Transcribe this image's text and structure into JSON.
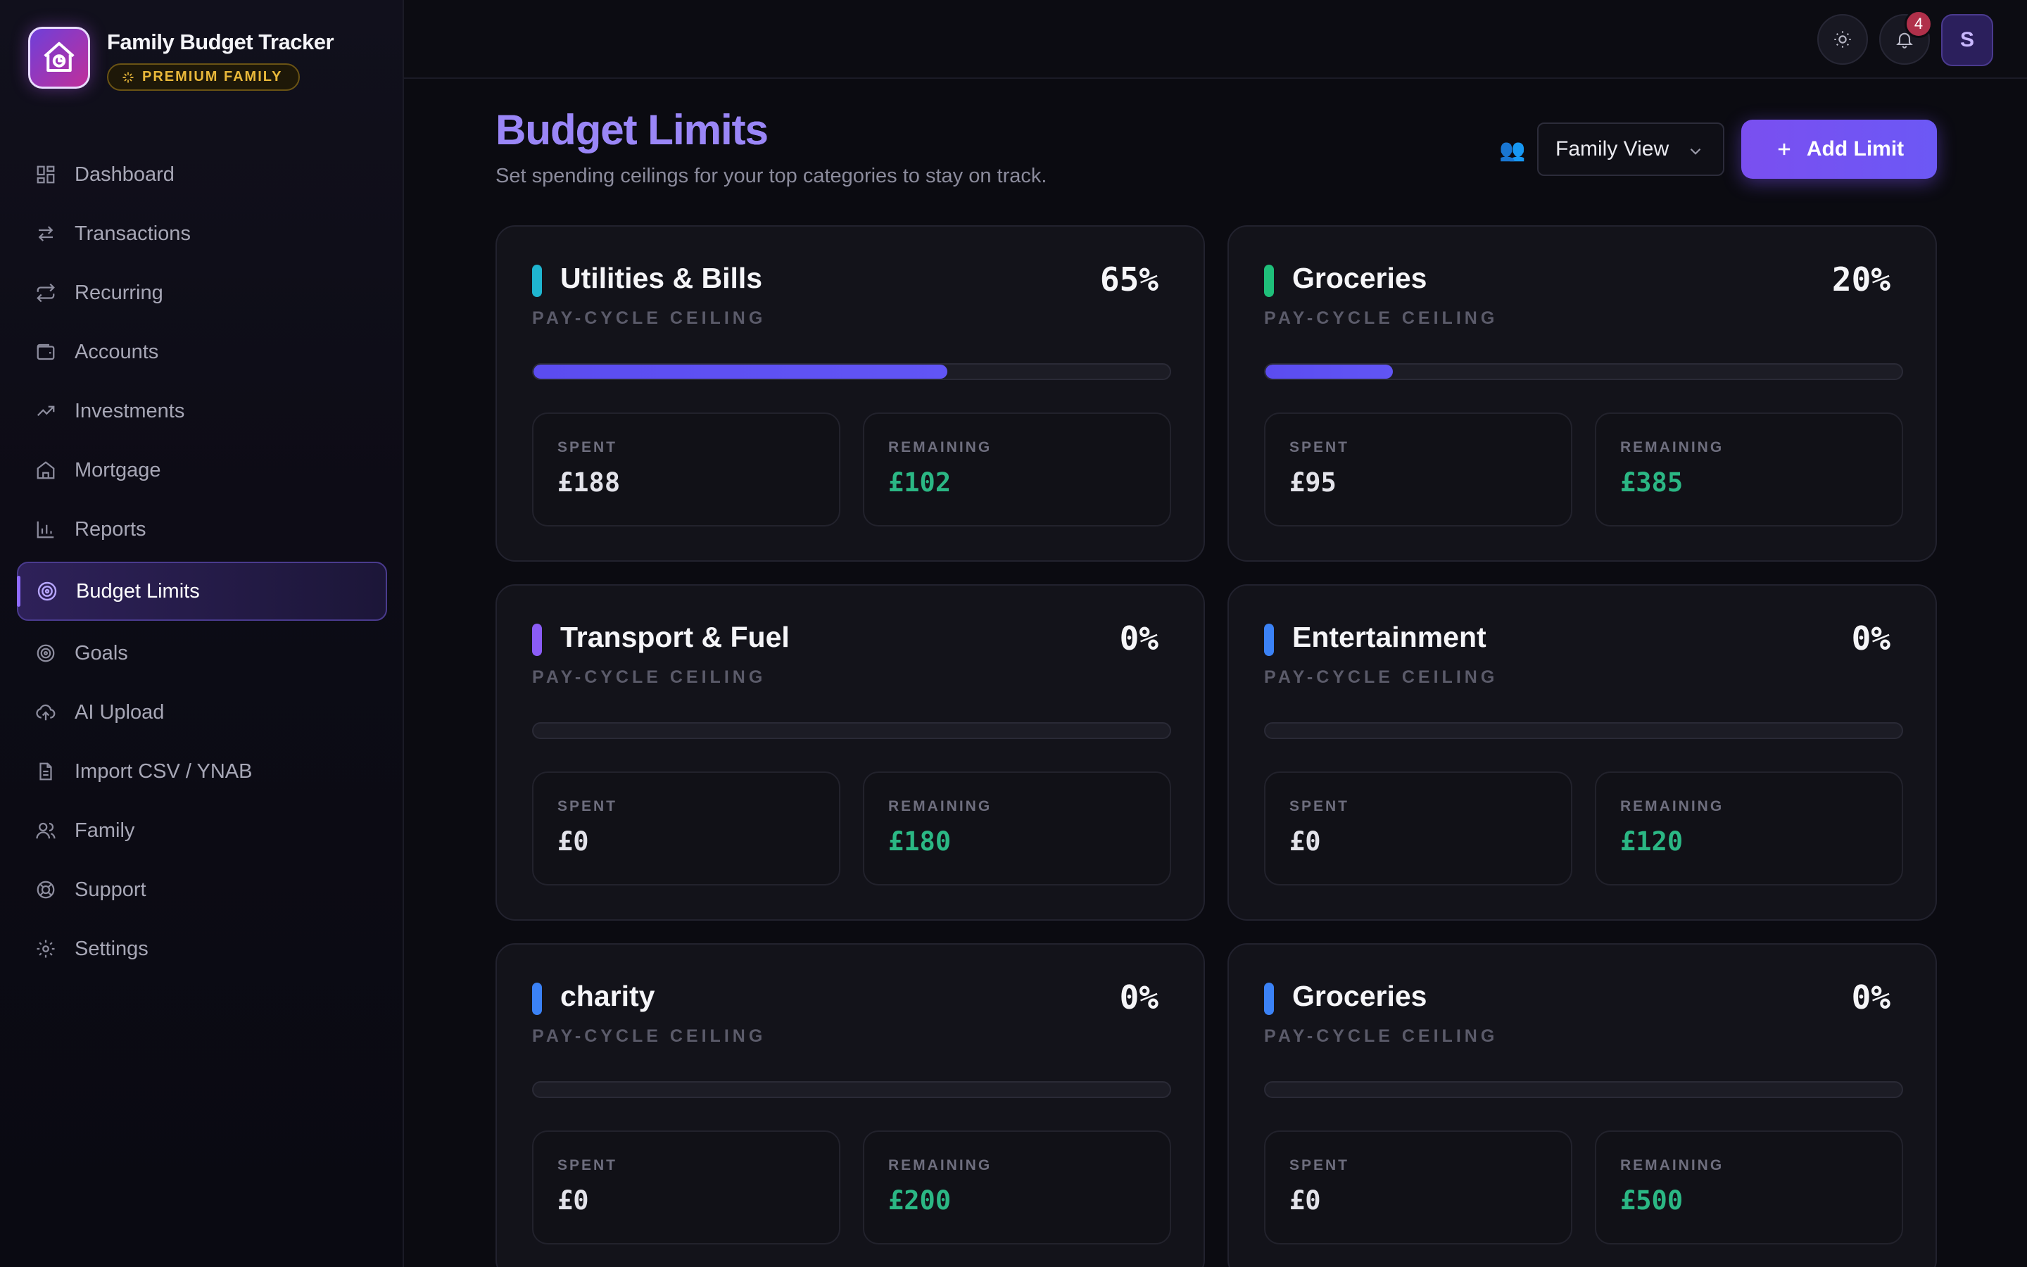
{
  "app": {
    "title": "Family Budget Tracker",
    "plan_badge": "PREMIUM FAMILY"
  },
  "sidebar": {
    "items": [
      {
        "label": "Dashboard",
        "icon": "grid-icon"
      },
      {
        "label": "Transactions",
        "icon": "arrows-swap-icon"
      },
      {
        "label": "Recurring",
        "icon": "repeat-icon"
      },
      {
        "label": "Accounts",
        "icon": "wallet-icon"
      },
      {
        "label": "Investments",
        "icon": "trend-up-icon"
      },
      {
        "label": "Mortgage",
        "icon": "home-icon"
      },
      {
        "label": "Reports",
        "icon": "bar-chart-icon"
      },
      {
        "label": "Budget Limits",
        "icon": "target-icon",
        "active": true
      },
      {
        "label": "Goals",
        "icon": "goal-icon"
      },
      {
        "label": "AI Upload",
        "icon": "cloud-upload-icon"
      },
      {
        "label": "Import CSV / YNAB",
        "icon": "file-icon"
      },
      {
        "label": "Family",
        "icon": "users-icon"
      },
      {
        "label": "Support",
        "icon": "lifebuoy-icon"
      },
      {
        "label": "Settings",
        "icon": "gear-icon"
      }
    ]
  },
  "topbar": {
    "notifications_count": "4",
    "avatar_initial": "S"
  },
  "header": {
    "title": "Budget Limits",
    "subtitle": "Set spending ceilings for your top categories to stay on track.",
    "view_select": "Family View",
    "add_button": "Add Limit"
  },
  "cards": [
    {
      "name": "Utilities & Bills",
      "ceiling": "PAY-CYCLE CEILING",
      "percent": "65%",
      "progress": 0.65,
      "accent": "#1fb5d0",
      "spent_label": "SPENT",
      "spent": "£188",
      "remaining_label": "REMAINING",
      "remaining": "£102"
    },
    {
      "name": "Groceries",
      "ceiling": "PAY-CYCLE CEILING",
      "percent": "20%",
      "progress": 0.2,
      "accent": "#1fbf7a",
      "spent_label": "SPENT",
      "spent": "£95",
      "remaining_label": "REMAINING",
      "remaining": "£385"
    },
    {
      "name": "Transport & Fuel",
      "ceiling": "PAY-CYCLE CEILING",
      "percent": "0%",
      "progress": 0,
      "accent": "#8b5cf6",
      "spent_label": "SPENT",
      "spent": "£0",
      "remaining_label": "REMAINING",
      "remaining": "£180"
    },
    {
      "name": "Entertainment",
      "ceiling": "PAY-CYCLE CEILING",
      "percent": "0%",
      "progress": 0,
      "accent": "#3b82f6",
      "spent_label": "SPENT",
      "spent": "£0",
      "remaining_label": "REMAINING",
      "remaining": "£120"
    },
    {
      "name": "charity",
      "ceiling": "PAY-CYCLE CEILING",
      "percent": "0%",
      "progress": 0,
      "accent": "#3b82f6",
      "spent_label": "SPENT",
      "spent": "£0",
      "remaining_label": "REMAINING",
      "remaining": "£200"
    },
    {
      "name": "Groceries",
      "ceiling": "PAY-CYCLE CEILING",
      "percent": "0%",
      "progress": 0,
      "accent": "#3b82f6",
      "spent_label": "SPENT",
      "spent": "£0",
      "remaining_label": "REMAINING",
      "remaining": "£500"
    }
  ]
}
